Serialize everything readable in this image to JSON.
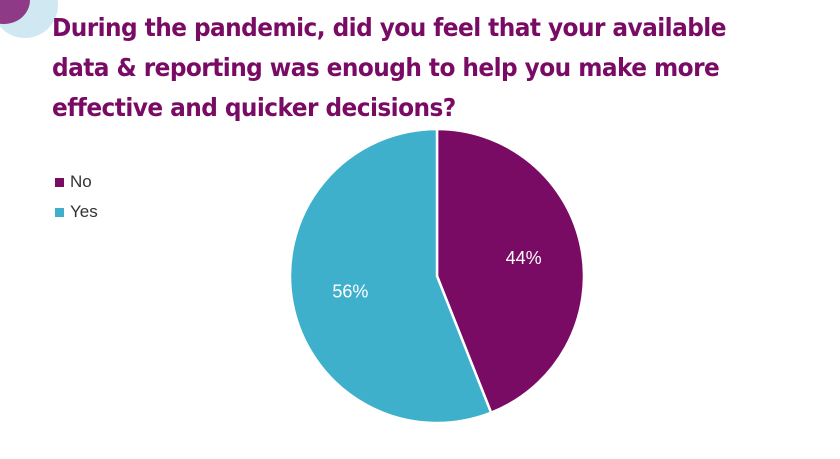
{
  "title": "During the pandemic, did you feel that your available data & reporting was enough to help you make more effective and quicker decisions?",
  "colors": {
    "title": "#7a0b64",
    "no": "#7a0b64",
    "yes": "#3fb0cb",
    "slice_stroke": "#ffffff",
    "deco_light": "#cfe8f1",
    "deco_dark": "#8f3a86"
  },
  "chart_data": {
    "type": "pie",
    "title": "During the pandemic, did you feel that your available data & reporting was enough to help you make more effective and quicker decisions?",
    "legend_position": "top-left",
    "slices": [
      {
        "label": "No",
        "value": 44,
        "display": "44%",
        "color": "#7a0b64"
      },
      {
        "label": "Yes",
        "value": 56,
        "display": "56%",
        "color": "#3fb0cb"
      }
    ]
  }
}
